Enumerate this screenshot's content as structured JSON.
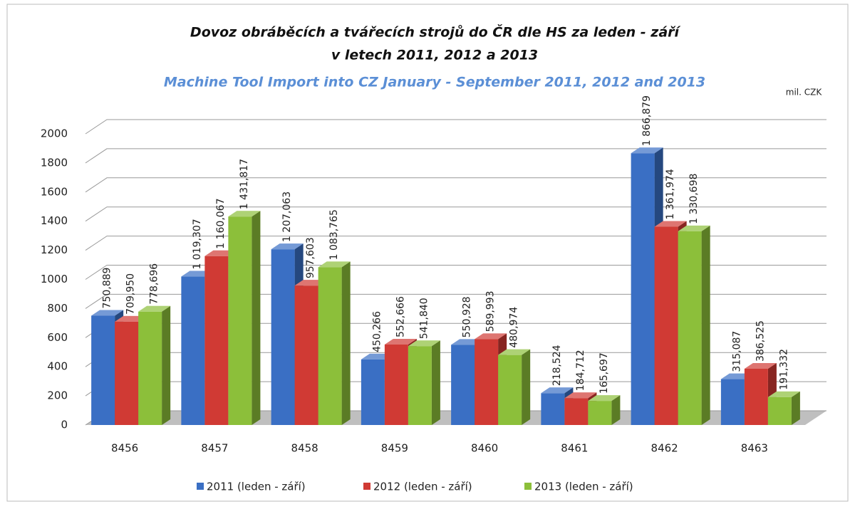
{
  "chart_data": {
    "type": "bar3d",
    "title": [
      "Dovoz obráběcích a tvářecích strojů do ČR dle HS za leden - září",
      "v letech 2011, 2012 a 2013"
    ],
    "subtitle": "Machine Tool Import into CZ January - September 2011, 2012 and 2013",
    "unit_label": "mil. CZK",
    "categories": [
      "8456",
      "8457",
      "8458",
      "8459",
      "8460",
      "8461",
      "8462",
      "8463"
    ],
    "series": [
      {
        "name": "2011 (leden - září)",
        "color": "#3a6fc4",
        "values": [
          750.889,
          1019.307,
          1207.063,
          450.266,
          550.928,
          218.524,
          1866.879,
          315.087
        ],
        "value_labels": [
          "750,889",
          "1 019,307",
          "1 207,063",
          "450,266",
          "550,928",
          "218,524",
          "1 866,879",
          "315,087"
        ]
      },
      {
        "name": "2012 (leden - září)",
        "color": "#d03a34",
        "values": [
          709.95,
          1160.067,
          957.603,
          552.666,
          589.993,
          184.712,
          1361.974,
          386.525
        ],
        "value_labels": [
          "709,950",
          "1 160,067",
          "957,603",
          "552,666",
          "589,993",
          "184,712",
          "1 361,974",
          "386,525"
        ]
      },
      {
        "name": "2013 (leden - září)",
        "color": "#8cbf3a",
        "values": [
          778.696,
          1431.817,
          1083.765,
          541.84,
          480.974,
          165.697,
          1330.698,
          191.332
        ],
        "value_labels": [
          "778,696",
          "1 431,817",
          "1 083,765",
          "541,840",
          "480,974",
          "165,697",
          "1 330,698",
          "191,332"
        ]
      }
    ],
    "ylim": [
      0,
      2000
    ],
    "yticks": [
      0,
      200,
      400,
      600,
      800,
      1000,
      1200,
      1400,
      1600,
      1800,
      2000
    ],
    "grid": true,
    "legend": "bottom"
  }
}
